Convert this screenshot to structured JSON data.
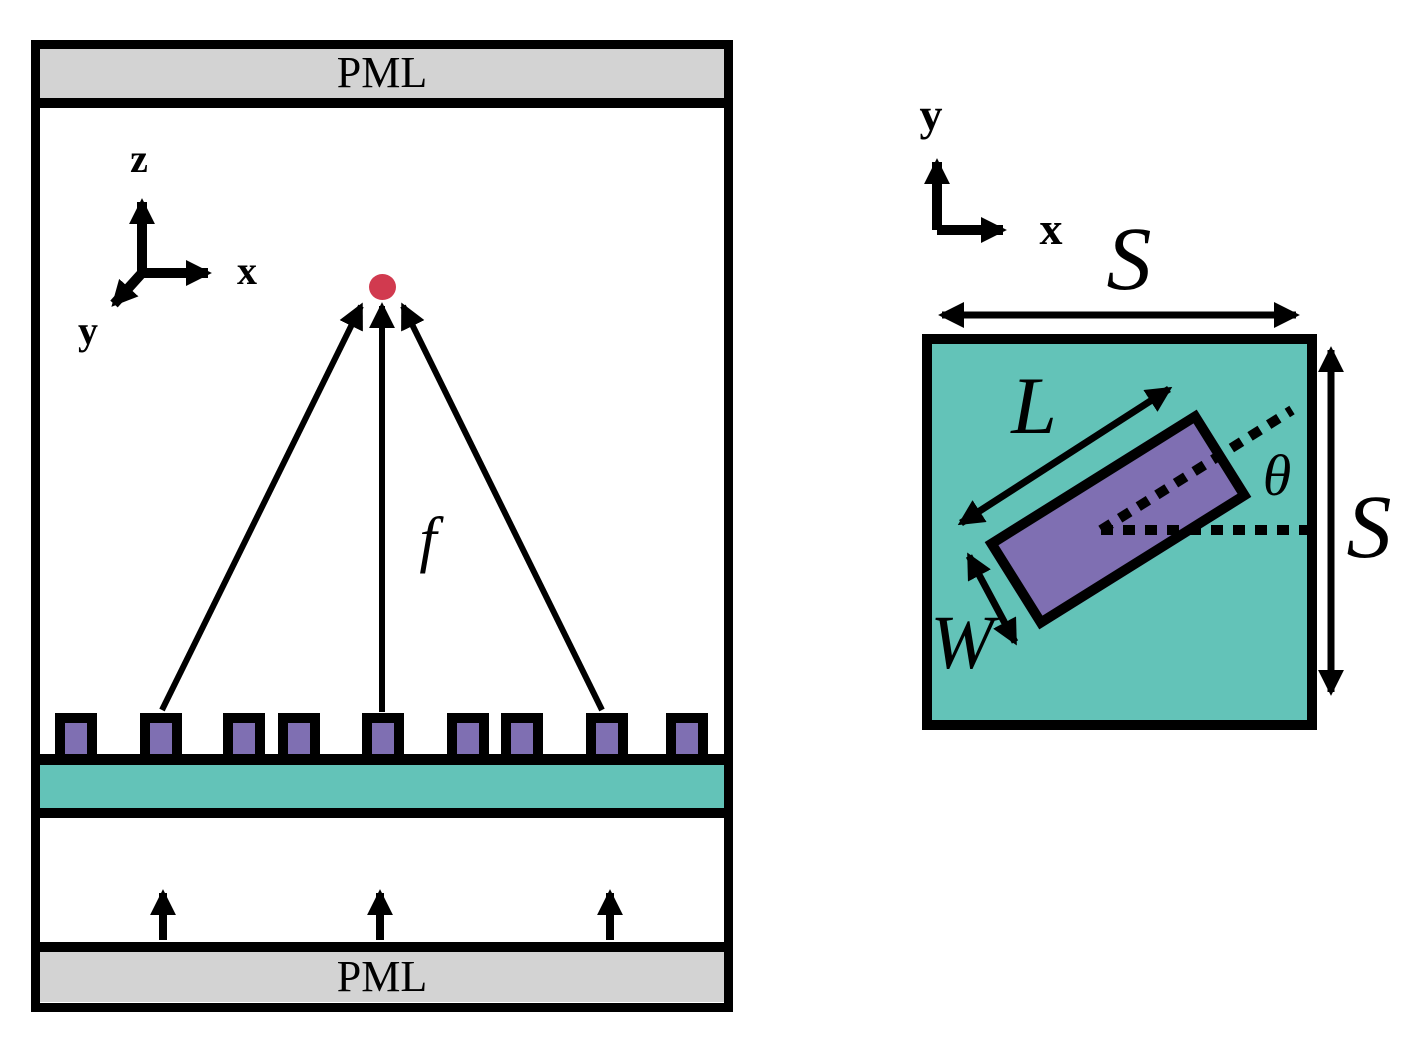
{
  "simulation": {
    "pml_top_label": "PML",
    "pml_bottom_label": "PML",
    "axis": {
      "z": "z",
      "x": "x",
      "y": "y"
    },
    "focal_length_label": "f",
    "pillars": {
      "count": 9,
      "centers": [
        76,
        161,
        244,
        299,
        383,
        468,
        522,
        607,
        687
      ]
    }
  },
  "unit_cell": {
    "axis": {
      "x": "x",
      "y": "y"
    },
    "side_label_top": "S",
    "side_label_right": "S",
    "length_label": "L",
    "width_label": "W",
    "angle_label": "θ"
  },
  "colors": {
    "pml_gray": "#d3d3d3",
    "substrate_teal": "#63c3b8",
    "pillar_purple": "#7f6fb2",
    "focus_red": "#d13a4f",
    "outline_black": "#000000",
    "background": "#ffffff"
  }
}
